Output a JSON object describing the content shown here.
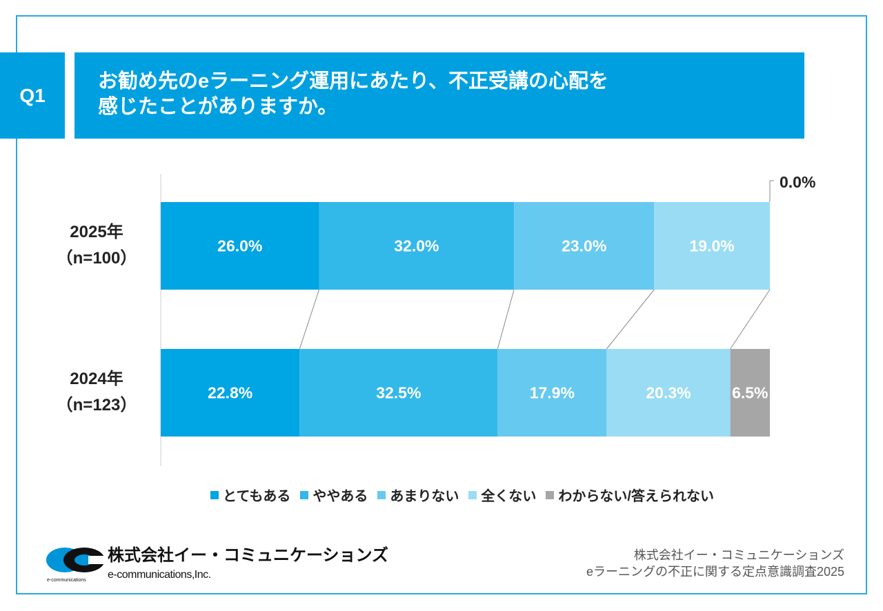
{
  "question": {
    "number": "Q1",
    "line1": "お勧め先のeラーニング運用にあたり、不正受講の心配を",
    "line2": "感じたことがありますか。"
  },
  "colors": [
    "#00a5e3",
    "#33b8ea",
    "#66c9f0",
    "#99dcf4",
    "#a6a6a6"
  ],
  "chart_data": {
    "type": "bar",
    "stacked": true,
    "orientation": "horizontal",
    "unit": "%",
    "categories": [
      {
        "label": "2025年",
        "n": "（n=100）"
      },
      {
        "label": "2024年",
        "n": "（n=123）"
      }
    ],
    "series": [
      {
        "name": "とてもある",
        "values": [
          26.0,
          22.8
        ],
        "labels": [
          "26.0%",
          "22.8%"
        ]
      },
      {
        "name": "ややある",
        "values": [
          32.0,
          32.5
        ],
        "labels": [
          "32.0%",
          "32.5%"
        ]
      },
      {
        "name": "あまりない",
        "values": [
          23.0,
          17.9
        ],
        "labels": [
          "23.0%",
          "17.9%"
        ]
      },
      {
        "name": "全くない",
        "values": [
          19.0,
          20.3
        ],
        "labels": [
          "19.0%",
          "20.3%"
        ]
      },
      {
        "name": "わからない/答えられない",
        "values": [
          0.0,
          6.5
        ],
        "labels": [
          "0.0%",
          "6.5%"
        ]
      }
    ],
    "xlim": [
      0,
      100
    ],
    "legend": "bottom"
  },
  "footer": {
    "company_jp": "株式会社イー・コミュニケーションズ",
    "company_en": "e-communications,Inc.",
    "logo_small": "e-communications",
    "source_line1": "株式会社イー・コミュニケーションズ",
    "source_line2": "eラーニングの不正に関する定点意識調査2025"
  }
}
